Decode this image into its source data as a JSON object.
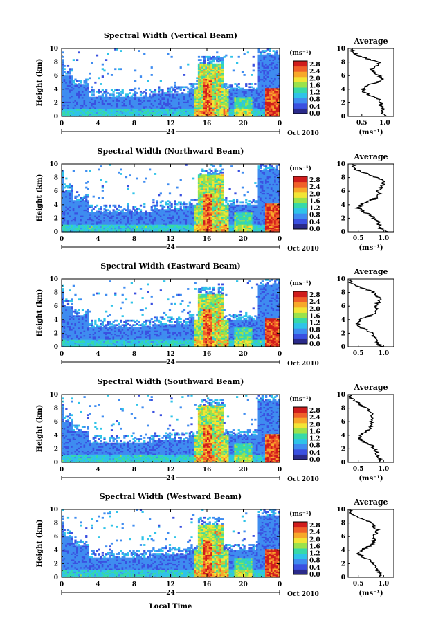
{
  "figure": {
    "xlabel": "Local Time",
    "ylabel": "Height (km)",
    "cb_label": "(ms⁻¹)",
    "date_label": "Oct 2010",
    "avg_title": "Average",
    "avg_xlabel": "(ms⁻¹)"
  },
  "chart_data": [
    {
      "type": "heatmap",
      "title": "Spectral Width (Vertical Beam)",
      "x_ticks": [
        "0",
        "4",
        "8",
        "12",
        "16",
        "20",
        "0"
      ],
      "x_day_label": "24",
      "y_ticks": [
        "0",
        "2",
        "4",
        "6",
        "8",
        "10"
      ],
      "xlim": [
        0,
        24
      ],
      "ylim": [
        0,
        10
      ],
      "colorbar": {
        "ticks": [
          "0.0",
          "0.4",
          "0.8",
          "1.2",
          "1.6",
          "2.0",
          "2.4",
          "2.8"
        ],
        "range": [
          0,
          3.0
        ],
        "colors": [
          "#2a2a8a",
          "#3a50e0",
          "#3f8cf0",
          "#2fc3e8",
          "#37d9a8",
          "#9be24b",
          "#f2e535",
          "#f7a82a",
          "#f0602a",
          "#d01c1c"
        ]
      },
      "average": {
        "xlabel": "(ms⁻¹)",
        "x_ticks": [
          "0.5",
          "1.0"
        ],
        "xlim": [
          0.2,
          1.2
        ],
        "heights": [
          0,
          0.5,
          1,
          1.5,
          2,
          2.5,
          3,
          3.5,
          4,
          4.5,
          5,
          5.5,
          6,
          6.5,
          7,
          7.5,
          8,
          8.5,
          9,
          9.5
        ],
        "values": [
          1.0,
          0.95,
          0.97,
          0.94,
          0.9,
          0.88,
          0.7,
          0.55,
          0.52,
          0.6,
          0.85,
          0.95,
          0.88,
          0.75,
          0.72,
          0.85,
          0.9,
          0.6,
          0.4,
          0.3
        ]
      }
    },
    {
      "type": "heatmap",
      "title": "Spectral Width (Northward Beam)",
      "x_ticks": [
        "0",
        "4",
        "8",
        "12",
        "16",
        "20",
        "0"
      ],
      "x_day_label": "24",
      "y_ticks": [
        "0",
        "2",
        "4",
        "6",
        "8",
        "10"
      ],
      "xlim": [
        0,
        24
      ],
      "ylim": [
        0,
        10
      ],
      "colorbar": {
        "ticks": [
          "0.0",
          "0.4",
          "0.8",
          "1.2",
          "1.6",
          "2.0",
          "2.4",
          "2.8"
        ],
        "range": [
          0,
          3.0
        ],
        "colors": [
          "#2a2a8a",
          "#3a50e0",
          "#3f8cf0",
          "#2fc3e8",
          "#37d9a8",
          "#9be24b",
          "#f2e535",
          "#f7a82a",
          "#f0602a",
          "#d01c1c"
        ]
      },
      "average": {
        "xlabel": "(ms⁻¹)",
        "x_ticks": [
          "0.5",
          "1.0"
        ],
        "xlim": [
          0.3,
          1.2
        ],
        "heights": [
          0,
          0.5,
          1,
          1.5,
          2,
          2.5,
          3,
          3.5,
          4,
          4.5,
          5,
          5.5,
          6,
          6.5,
          7,
          7.5,
          8,
          8.5,
          9,
          9.5
        ],
        "values": [
          1.05,
          0.95,
          0.92,
          0.88,
          0.82,
          0.72,
          0.6,
          0.5,
          0.55,
          0.7,
          0.85,
          0.92,
          0.88,
          0.95,
          1.0,
          1.0,
          0.85,
          0.7,
          0.5,
          0.4
        ]
      }
    },
    {
      "type": "heatmap",
      "title": "Spectral Width (Eastward Beam)",
      "x_ticks": [
        "0",
        "4",
        "8",
        "12",
        "16",
        "20",
        "0"
      ],
      "x_day_label": "24",
      "y_ticks": [
        "0",
        "2",
        "4",
        "6",
        "8",
        "10"
      ],
      "xlim": [
        0,
        24
      ],
      "ylim": [
        0,
        10
      ],
      "colorbar": {
        "ticks": [
          "0.0",
          "0.4",
          "0.8",
          "1.2",
          "1.6",
          "2.0",
          "2.4",
          "2.8"
        ],
        "range": [
          0,
          3.0
        ],
        "colors": [
          "#2a2a8a",
          "#3a50e0",
          "#3f8cf0",
          "#2fc3e8",
          "#37d9a8",
          "#9be24b",
          "#f2e535",
          "#f7a82a",
          "#f0602a",
          "#d01c1c"
        ]
      },
      "average": {
        "xlabel": "",
        "x_ticks": [
          "0.5",
          "1.0"
        ],
        "xlim": [
          0.3,
          1.2
        ],
        "heights": [
          0,
          0.5,
          1,
          1.5,
          2,
          2.5,
          3,
          3.5,
          4,
          4.5,
          5,
          5.5,
          6,
          6.5,
          7,
          7.5,
          8,
          8.5,
          9,
          9.5
        ],
        "values": [
          0.95,
          0.9,
          0.85,
          0.8,
          0.78,
          0.65,
          0.52,
          0.48,
          0.55,
          0.7,
          0.85,
          0.88,
          0.82,
          0.9,
          0.95,
          0.85,
          0.8,
          0.65,
          0.45,
          0.35
        ]
      }
    },
    {
      "type": "heatmap",
      "title": "Spectral Width (Southward Beam)",
      "x_ticks": [
        "0",
        "4",
        "8",
        "12",
        "16",
        "20",
        "0"
      ],
      "x_day_label": "24",
      "y_ticks": [
        "0",
        "2",
        "4",
        "6",
        "8",
        "10"
      ],
      "xlim": [
        0,
        24
      ],
      "ylim": [
        0,
        10
      ],
      "colorbar": {
        "ticks": [
          "0.0",
          "0.4",
          "0.8",
          "1.2",
          "1.6",
          "2.0",
          "2.4",
          "2.8"
        ],
        "range": [
          0,
          3.0
        ],
        "colors": [
          "#2a2a8a",
          "#3a50e0",
          "#3f8cf0",
          "#2fc3e8",
          "#37d9a8",
          "#9be24b",
          "#f2e535",
          "#f7a82a",
          "#f0602a",
          "#d01c1c"
        ]
      },
      "average": {
        "xlabel": "(ms⁻¹)",
        "x_ticks": [
          "0.5",
          "1.0"
        ],
        "xlim": [
          0.3,
          1.2
        ],
        "heights": [
          0,
          0.5,
          1,
          1.5,
          2,
          2.5,
          3,
          3.5,
          4,
          4.5,
          5,
          5.5,
          6,
          6.5,
          7,
          7.5,
          8,
          8.5,
          9,
          9.5
        ],
        "values": [
          0.95,
          0.92,
          0.9,
          0.85,
          0.82,
          0.75,
          0.62,
          0.52,
          0.55,
          0.65,
          0.72,
          0.78,
          0.75,
          0.8,
          0.78,
          0.72,
          0.65,
          0.55,
          0.45,
          0.35
        ]
      }
    },
    {
      "type": "heatmap",
      "title": "Spectral Width (Westward Beam)",
      "x_ticks": [
        "0",
        "4",
        "8",
        "12",
        "16",
        "20",
        "0"
      ],
      "x_day_label": "24",
      "y_ticks": [
        "0",
        "2",
        "4",
        "6",
        "8",
        "10"
      ],
      "xlim": [
        0,
        24
      ],
      "ylim": [
        0,
        10
      ],
      "colorbar": {
        "ticks": [
          "0.0",
          "0.4",
          "0.8",
          "1.2",
          "1.6",
          "2.0",
          "2.4",
          "2.8"
        ],
        "range": [
          0,
          3.0
        ],
        "colors": [
          "#2a2a8a",
          "#3a50e0",
          "#3f8cf0",
          "#2fc3e8",
          "#37d9a8",
          "#9be24b",
          "#f2e535",
          "#f7a82a",
          "#f0602a",
          "#d01c1c"
        ]
      },
      "average": {
        "xlabel": "(ms⁻¹)",
        "x_ticks": [
          "0.5",
          "1.0"
        ],
        "xlim": [
          0.3,
          1.2
        ],
        "heights": [
          0,
          0.5,
          1,
          1.5,
          2,
          2.5,
          3,
          3.5,
          4,
          4.5,
          5,
          5.5,
          6,
          6.5,
          7,
          7.5,
          8,
          8.5,
          9,
          9.5
        ],
        "values": [
          0.95,
          0.92,
          0.88,
          0.85,
          0.8,
          0.72,
          0.58,
          0.5,
          0.55,
          0.7,
          0.8,
          0.82,
          0.78,
          0.85,
          0.88,
          0.8,
          0.75,
          0.6,
          0.45,
          0.35
        ]
      }
    }
  ]
}
